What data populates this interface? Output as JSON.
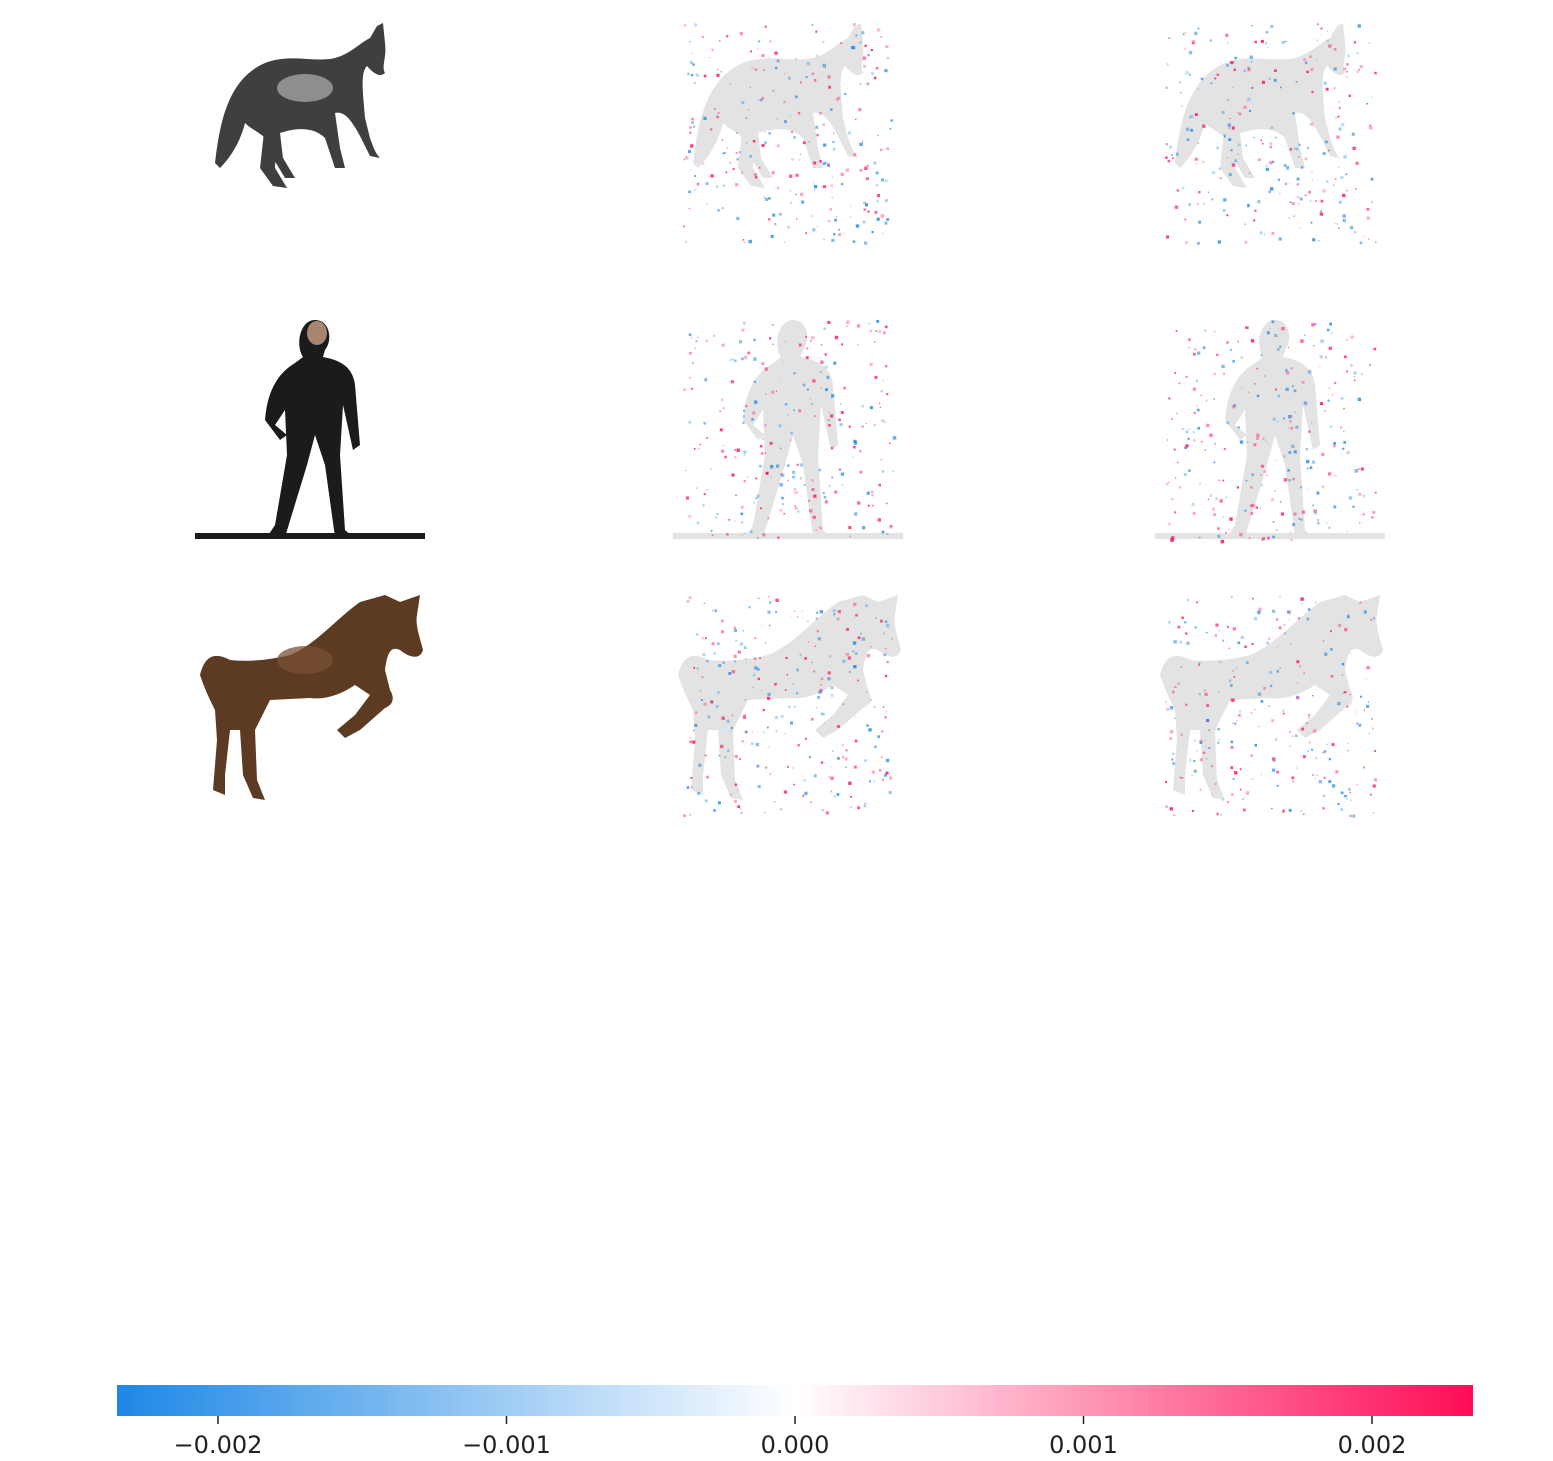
{
  "figure": {
    "rows": [
      {
        "subject": "grey-horse",
        "colors": {
          "body": "#3f3f3f",
          "patch": "#a9a9a9",
          "shade": "#1e1e1e"
        }
      },
      {
        "subject": "man",
        "colors": {
          "body": "#1b1b1b",
          "skin": "#d8a98c",
          "shade": "#0d0d0d"
        }
      },
      {
        "subject": "brown-horse",
        "colors": {
          "body": "#5c3b22",
          "patch": "#7a5233",
          "shade": "#2a1a10"
        }
      }
    ],
    "columns": [
      "input-image",
      "shap-map-1",
      "shap-map-2"
    ],
    "colors": {
      "positive": "#ff0d57",
      "negative": "#1e88e5",
      "neutral": "#ffffff",
      "silhouette": "#e3e3e3"
    }
  },
  "chart_data": {
    "type": "heatmap",
    "title": "",
    "xlabel": "",
    "ylabel": "",
    "colorbar": {
      "orientation": "horizontal",
      "range": [
        -0.00235,
        0.00235
      ],
      "ticks": [
        -0.002,
        -0.001,
        0.0,
        0.001,
        0.002
      ],
      "tick_labels": [
        "−0.002",
        "−0.001",
        "0.000",
        "0.001",
        "0.002"
      ],
      "color_low": "#1e88e5",
      "color_mid": "#ffffff",
      "color_high": "#ff0d57"
    }
  }
}
